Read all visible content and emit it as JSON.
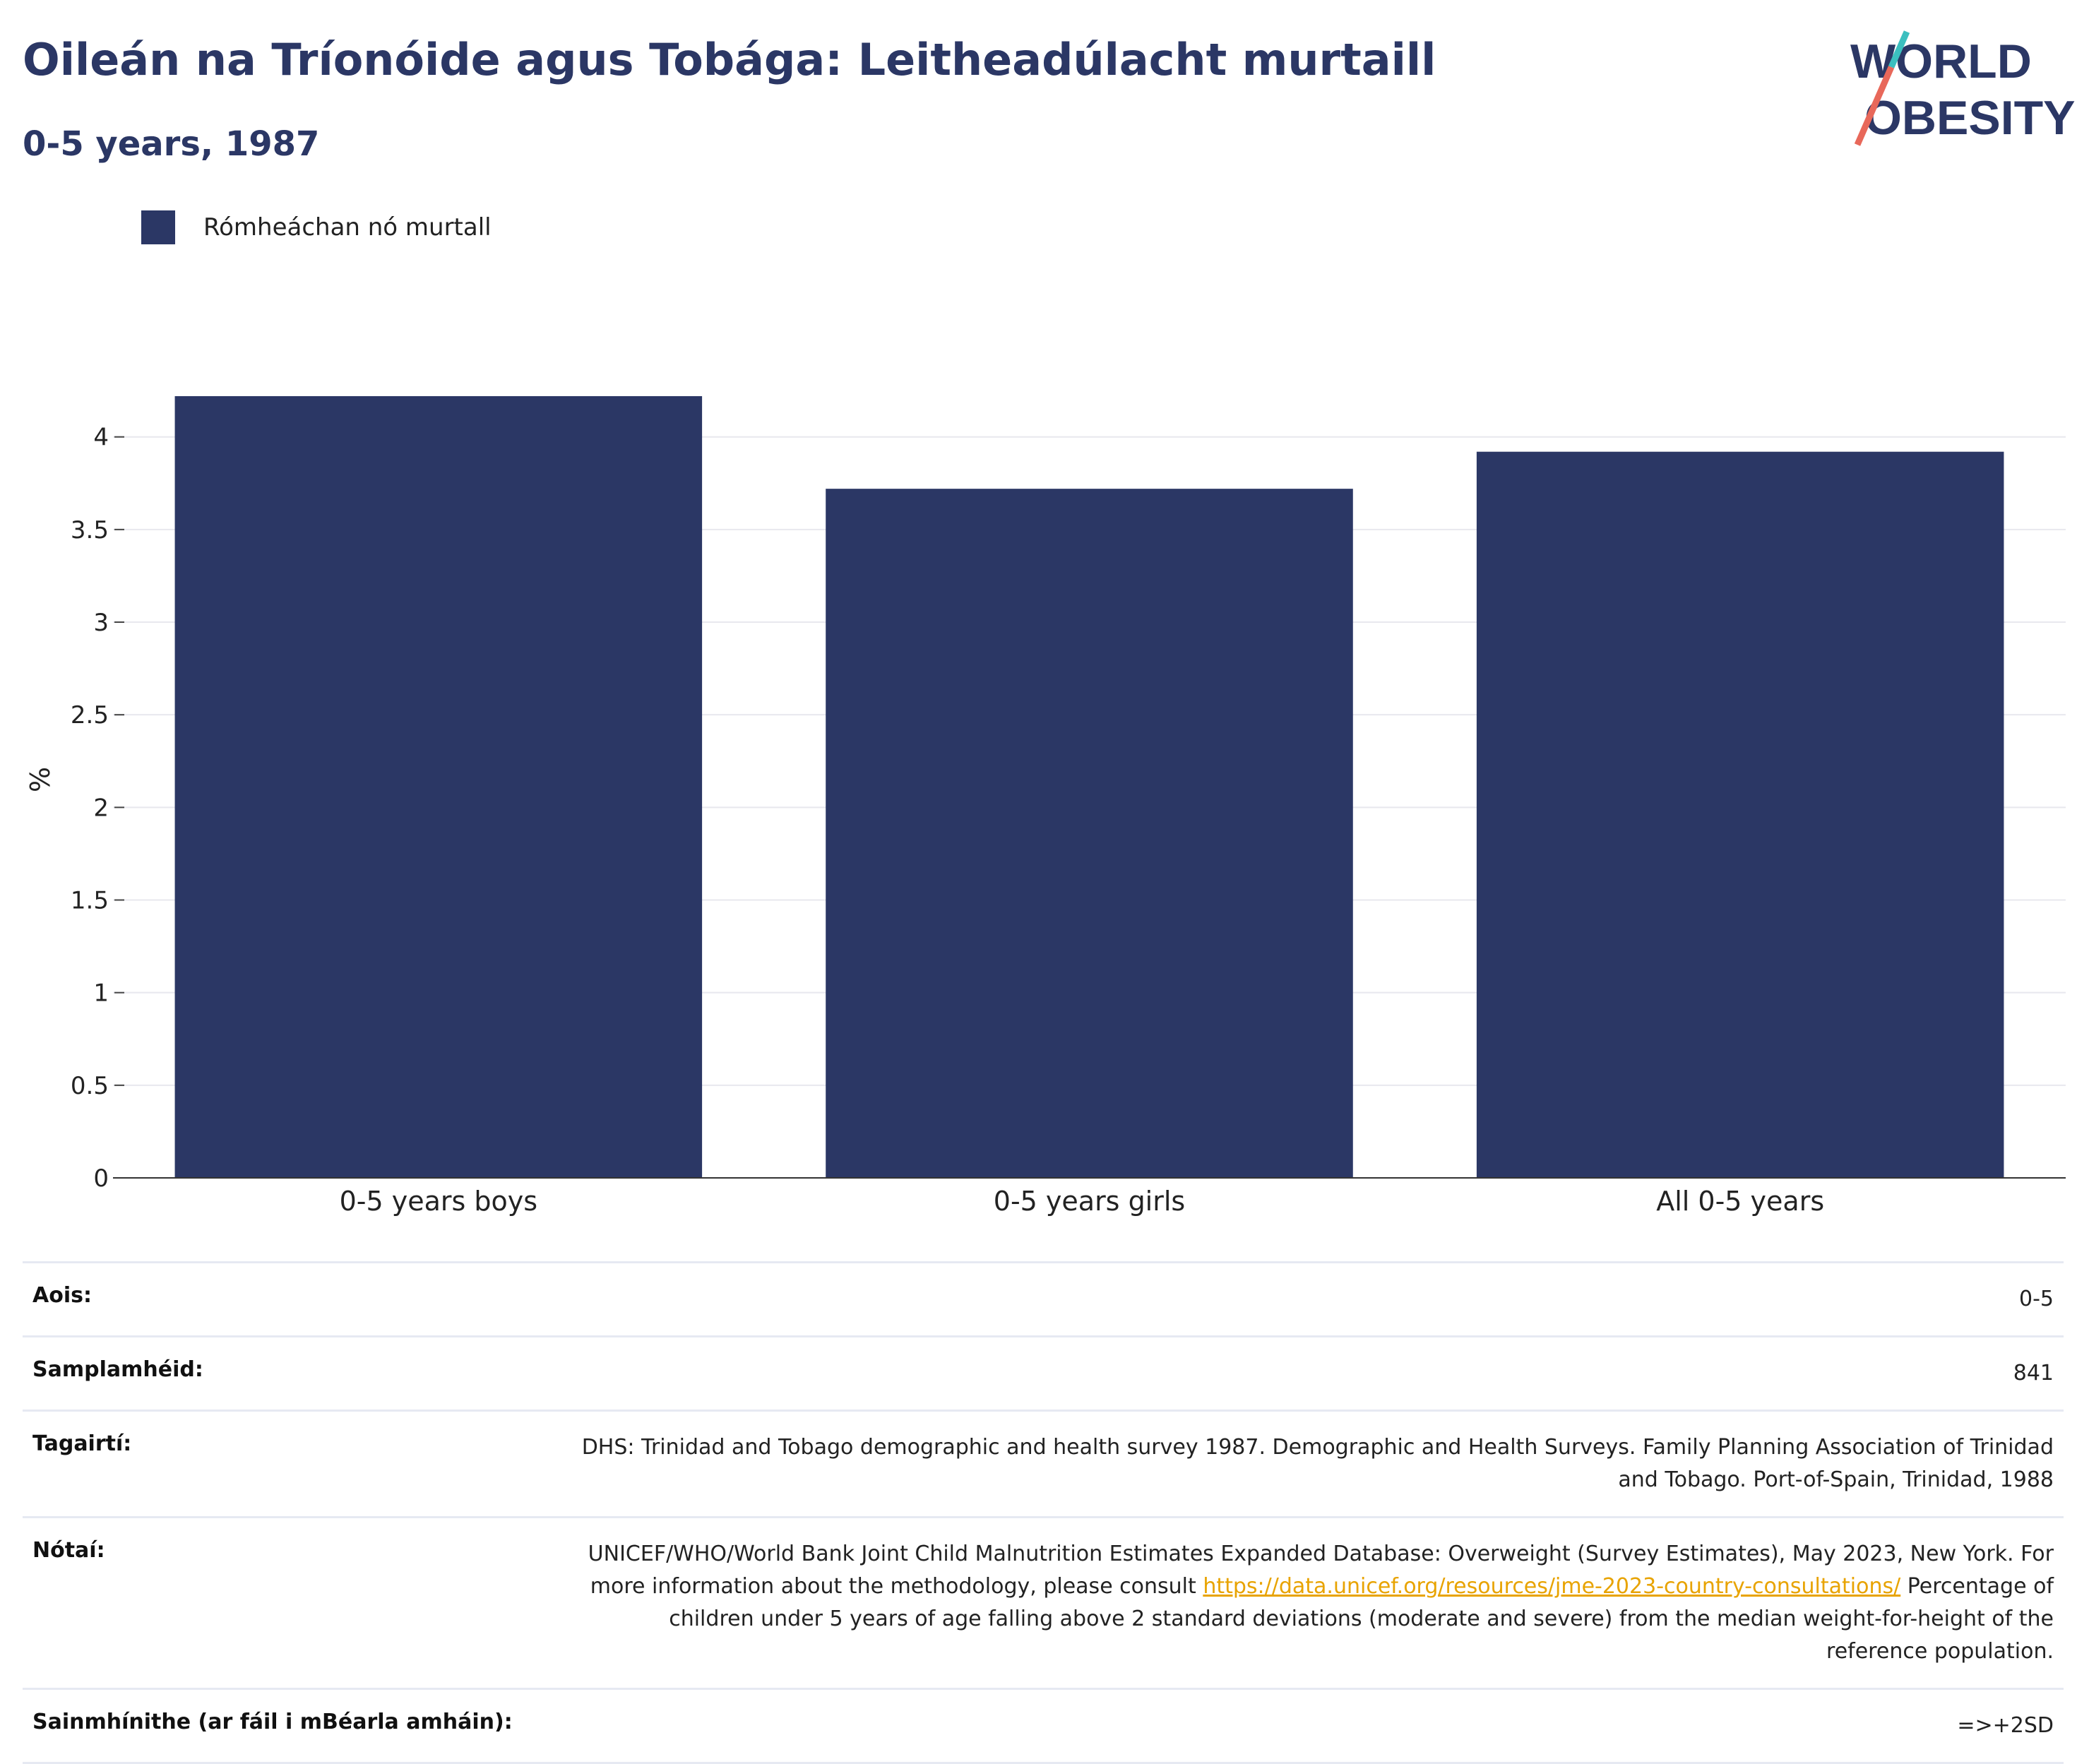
{
  "header": {
    "title": "Oileán na Tríonóide agus Tobága: Leitheadúlacht murtaill",
    "subtitle": "0-5 years, 1987"
  },
  "logo": {
    "line1": "WORLD",
    "line2": "OBESITY"
  },
  "colors": {
    "bar": "#2b3765",
    "accent_teal": "#3bbfbf",
    "accent_coral": "#e8685a"
  },
  "chart_data": {
    "type": "bar",
    "categories": [
      "0-5 years boys",
      "0-5 years girls",
      "All 0-5 years"
    ],
    "series": [
      {
        "name": "Rómheáchan nó murtall",
        "values": [
          4.22,
          3.72,
          3.92
        ]
      }
    ],
    "ylabel": "%",
    "ylim": [
      0,
      4.3
    ],
    "yticks": [
      "0",
      "0.5",
      "1",
      "1.5",
      "2",
      "2.5",
      "3",
      "3.5",
      "4"
    ],
    "grid": true,
    "legend": "top-left"
  },
  "info": {
    "age": {
      "label": "Aois:",
      "value": "0-5"
    },
    "sample": {
      "label": "Samplamhéid:",
      "value": "841"
    },
    "references": {
      "label": "Tagairtí:",
      "value": "DHS: Trinidad and Tobago demographic and health survey 1987. Demographic and Health Surveys. Family Planning Association of Trinidad and Tobago. Port-of-Spain, Trinidad, 1988"
    },
    "notes": {
      "label": "Nótaí:",
      "text1": "UNICEF/WHO/World Bank Joint Child Malnutrition Estimates Expanded Database: Overweight (Survey Estimates), May 2023, New York. For more information about the methodology, please consult ",
      "link": "https://data.unicef.org/resources/jme-2023-country-consultations/",
      "text2": " Percentage of children under 5 years of age falling above 2 standard deviations (moderate and severe) from the median weight-for-height of the reference population."
    },
    "definitions": {
      "label": "Sainmhínithe (ar fáil i mBéarla amháin):",
      "value": "=>+2SD"
    }
  }
}
